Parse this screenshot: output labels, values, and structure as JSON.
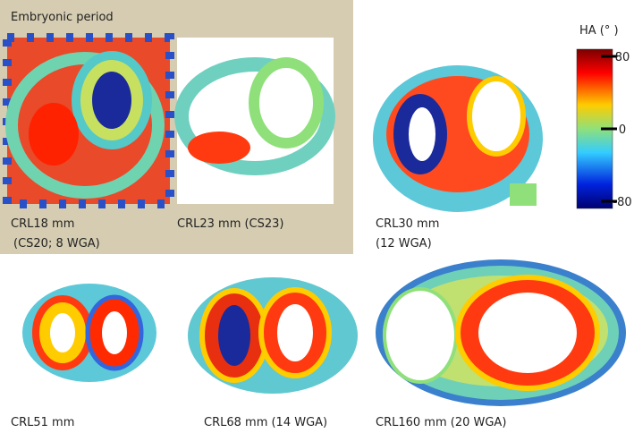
{
  "figure": {
    "group_label": "Embryonic period",
    "panels": [
      {
        "label": [
          "CRL18 mm",
          "(CS20; 8 WGA)"
        ]
      },
      {
        "label": [
          "CRL23 mm (CS23)"
        ]
      },
      {
        "label": [
          "CRL30  mm",
          "(12 WGA)"
        ]
      },
      {
        "label": [
          "CRL51 mm"
        ]
      },
      {
        "label": [
          "CRL68 mm (14 WGA)"
        ]
      },
      {
        "label": [
          "CRL160 mm (20 WGA)"
        ]
      }
    ],
    "colorbar": {
      "title": "HA (°   )",
      "ticks": [
        80,
        0,
        -80
      ]
    }
  }
}
